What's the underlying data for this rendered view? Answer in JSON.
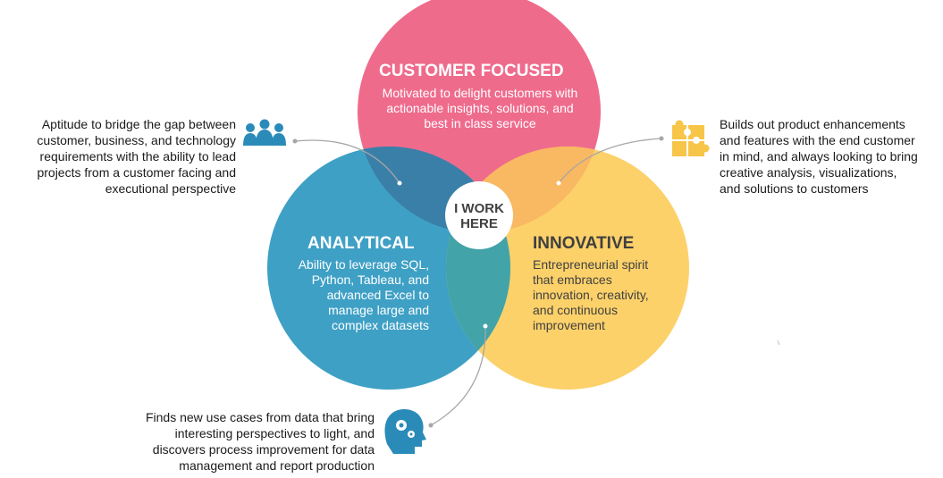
{
  "center": {
    "line1": "I WORK",
    "line2": "HERE"
  },
  "circles": {
    "customer": {
      "title": "CUSTOMER FOCUSED",
      "body": [
        "Motivated to delight customers with",
        "actionable insights, solutions, and",
        "best in class service"
      ],
      "color": "#ef6b8c"
    },
    "analytical": {
      "title": "ANALYTICAL",
      "body": [
        "Ability to leverage SQL,",
        "Python, Tableau, and",
        "advanced Excel to",
        "manage large and",
        "complex datasets"
      ],
      "color": "#3b9ec4"
    },
    "innovative": {
      "title": "INNOVATIVE",
      "body": [
        "Entrepreneurial spirit",
        "that embraces",
        "innovation, creativity,",
        "and continuous",
        "improvement"
      ],
      "color": "#fcd067"
    }
  },
  "callouts": {
    "left": {
      "lines": [
        "Aptitude to bridge the gap between",
        "customer, business, and technology",
        "requirements with the ability to lead",
        "projects from a customer facing and",
        "executional perspective"
      ],
      "icon": "team-icon"
    },
    "right": {
      "lines": [
        "Builds out product enhancements",
        "and features with the end customer",
        "in mind, and always looking to bring",
        "creative analysis, visualizations,",
        "and solutions to customers"
      ],
      "icon": "puzzle-icon"
    },
    "bottom": {
      "lines": [
        "Finds new use cases from data that bring",
        "interesting perspectives to light, and",
        "discovers process improvement for data",
        "management and report production"
      ],
      "icon": "head-gears-icon"
    }
  },
  "colors": {
    "icon_blue": "#2a8bb8",
    "icon_yellow": "#f7c548",
    "connector": "#a6a6a6",
    "text_dark": "#1a1a1a"
  }
}
